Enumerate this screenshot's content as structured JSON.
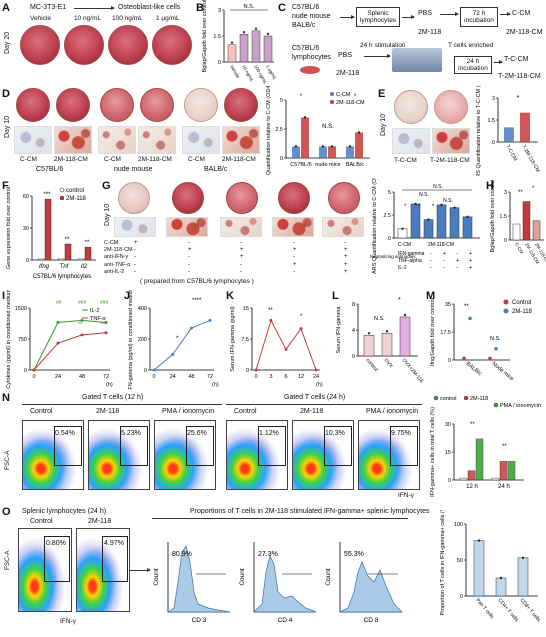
{
  "panel_labels": [
    "A",
    "B",
    "C",
    "D",
    "E",
    "F",
    "G",
    "H",
    "I",
    "J",
    "K",
    "L",
    "M",
    "N",
    "O"
  ],
  "A": {
    "title_left": "MC-3T3-E1",
    "title_right": "Osteoblast-like cells",
    "conditions": [
      "Vehicle",
      "10 ng/mL",
      "100 ng/mL",
      "1 μg/mL"
    ],
    "row_label": "Day 20"
  },
  "B": {
    "ylabel": "Bglap/Gapdh fold over control",
    "ns": "N.S.",
    "categories": [
      "Vehicle",
      "10 ng/mL",
      "100 ng/mL",
      "1 μg/mL"
    ]
  },
  "C": {
    "row1_sources": [
      "C57BL/6",
      "nude mouse",
      "BALB/c"
    ],
    "row1_box1": "Splenic lymphocytes",
    "row1_box2": "PBS",
    "row1_box2b": "2M-118",
    "row1_box3": "72 h incubation",
    "row1_out1": "C-CM",
    "row1_out2": "2M-118-CM",
    "row2_source1": "C57BL/6",
    "row2_source2": "lymphocytes",
    "row2_pbs": "PBS",
    "row2_2m": "2M-118",
    "row2_stim": "24 h stimulation",
    "row2_enriched": "T cells enriched",
    "row2_incub": "24 h incubation",
    "row2_out1": "T-C-CM",
    "row2_out2": "T-2M-118-CM"
  },
  "D": {
    "row_label": "Day 10",
    "col_labels": [
      "C-CM",
      "2M-118-CM",
      "C-CM",
      "2M-118-CM",
      "C-CM",
      "2M-118-CM"
    ],
    "group_labels": [
      "C57BL/6",
      "nude mouse",
      "BALB/c"
    ],
    "chart_ylabel": "ARS Quantification relative to C-CM (OD405nm)",
    "legend": [
      "C-CM",
      "2M-118-CM"
    ],
    "xcats": [
      "C57BL/6",
      "nude mice",
      "BALB/c"
    ],
    "sig": [
      "*",
      "N.S.",
      "*"
    ]
  },
  "E": {
    "row_label": "Day 10",
    "col_labels": [
      "T-C-CM",
      "T-2M-118-CM"
    ],
    "chart_ylabel": "ARS Quantification relative to T-C-CM (OD405nm)",
    "xcats": [
      "T-C-CM",
      "T-2M-118-CM"
    ],
    "sig": "*"
  },
  "F": {
    "ylabel": "Gene expression fold over control",
    "legend": [
      "control",
      "2M-118"
    ],
    "xcats": [
      "Ifng",
      "Tnf",
      "Il2"
    ],
    "xtitle": "C57BL/6 lymphocytes",
    "sig": [
      "***",
      "**",
      "**"
    ]
  },
  "G": {
    "row_label": "Day 10",
    "treat_rows": [
      "C-CM",
      "2M-118-CM",
      "anti-IFN-γ",
      "anti-TNF-α",
      "anti-IL-2"
    ],
    "signs": [
      [
        "+",
        "-",
        "-",
        "-",
        "-"
      ],
      [
        "-",
        "+",
        "+",
        "+",
        "+"
      ],
      [
        "-",
        "-",
        "+",
        "-",
        "+"
      ],
      [
        "-",
        "-",
        "-",
        "+",
        "+"
      ],
      [
        "-",
        "-",
        "-",
        "-",
        "+"
      ]
    ],
    "footer": "( prepared from C57BL/6 lymphocytes )",
    "chart_ylabel": "ARS Quantification relative to C-CM (OD405nm)",
    "chart_rows": [
      "C-CM",
      "2M-118-CM"
    ],
    "neutral_label": "Neutralizing antibodies",
    "neutral_rows": [
      "IFN-gamma",
      "TNF-alpha",
      "IL-2"
    ],
    "chart_signs": [
      [
        "-",
        "+",
        "-",
        "+"
      ],
      [
        "-",
        "-",
        "+",
        "+"
      ],
      [
        "-",
        "-",
        "-",
        "+"
      ]
    ],
    "ns": [
      "N.S.",
      "N.S.",
      "N.S."
    ],
    "stars": [
      "*",
      "*",
      "*"
    ]
  },
  "H": {
    "ylabel": "Bglap/Gapdh fold over control",
    "xcats": [
      "C-CM",
      "2M-118-CM",
      "2M-118-CM + anti-IFN-γ"
    ],
    "sig": [
      "**",
      "*"
    ]
  },
  "I": {
    "ylabel": "Cytokines (pg/ml) in conditioned medium",
    "legend": [
      "IL-2",
      "TNF-α"
    ],
    "xlabel": "(h)",
    "sig_il2": [
      "##",
      "###",
      "###"
    ],
    "sig_tnf": [
      "**",
      "***"
    ]
  },
  "J": {
    "ylabel": "IFN-gamma (pg/ml) in conditioned medium",
    "xlabel": "(h)",
    "sig": [
      "*",
      "****"
    ]
  },
  "K": {
    "ylabel": "Serum IFN-gamma (pg/ml)",
    "xlabel": "(h)",
    "sig": [
      "**",
      "*"
    ]
  },
  "L": {
    "ylabel": "Serum IFN-gamma",
    "xcats": [
      "control",
      "OVX",
      "OVX+2M-118"
    ],
    "sig": [
      "N.S.",
      "*"
    ]
  },
  "M": {
    "ylabel": "Ifng/Gapdh fold over control",
    "legend": [
      "Control",
      "2M-118"
    ],
    "xcats": [
      "BALB/c",
      "Nude mice"
    ],
    "sig": [
      "**",
      "N.S."
    ]
  },
  "N": {
    "title_12h": "Gated T cells (12 h)",
    "title_24h": "Gated T cells (24 h)",
    "cols_12h": [
      "Control",
      "2M-118",
      "PMA / ionomycin"
    ],
    "cols_24h": [
      "Control",
      "2M-118",
      "PMA / ionomycin"
    ],
    "pcts_12h": [
      "0.54%",
      "5.23%",
      "25.6%"
    ],
    "pcts_24h": [
      "1.12%",
      "10.3%",
      "9.75%"
    ],
    "yaxis": "FSC-A",
    "xaxis": "IFN-γ",
    "chart_legend": [
      "control",
      "2M-118",
      "PMA / ionomycin"
    ],
    "chart_ylabel": "IFN-gamma+ cells in total T cells (%)",
    "chart_xcats": [
      "12 h",
      "24 h"
    ],
    "chart_sig": [
      "**",
      "**"
    ]
  },
  "O": {
    "title_left": "Splenic lymphocytes (24 h)",
    "cols": [
      "Control",
      "2M-118"
    ],
    "pcts": [
      "0.80%",
      "4.97%"
    ],
    "yaxis": "FSC-A",
    "xaxis": "IFN-γ",
    "title_mid": "Proportions of T cells in 2M-118 stimulated IFN-gamma+ splenic lymphocytes",
    "hist_pcts": [
      "80.9%",
      "27.3%",
      "55.3%"
    ],
    "hist_x": [
      "CD 3",
      "CD 4",
      "CD 8"
    ],
    "hist_y": "Count",
    "chart_ylabel": "Proportion of T cells in IFN-gamma+ cells (%)",
    "chart_xcats": [
      "Pan T cells",
      "CD4+ T cells",
      "CD8+ T cells"
    ]
  },
  "colors": {
    "bar_blue": "#4a7cc0",
    "bar_red": "#c83a3a",
    "green": "#2ea02e",
    "hist_fill": "#a9cbe8"
  },
  "chart_data": [
    {
      "panel": "B",
      "type": "bar",
      "categories": [
        "Vehicle",
        "10 ng/mL",
        "100 ng/mL",
        "1 μg/mL"
      ],
      "values": [
        1.0,
        1.6,
        1.8,
        1.5
      ],
      "ylim": [
        0,
        3
      ]
    },
    {
      "panel": "D",
      "type": "bar",
      "categories": [
        "C57BL/6",
        "nude mice",
        "BALB/c"
      ],
      "series": [
        {
          "name": "C-CM",
          "values": [
            1.0,
            1.0,
            1.0
          ]
        },
        {
          "name": "2M-118-CM",
          "values": [
            3.5,
            1.0,
            2.2
          ]
        }
      ],
      "ylim": [
        0,
        5
      ]
    },
    {
      "panel": "E",
      "type": "bar",
      "categories": [
        "T-C-CM",
        "T-2M-118-CM"
      ],
      "values": [
        1.0,
        2.0
      ],
      "ylim": [
        0,
        3
      ]
    },
    {
      "panel": "F",
      "type": "bar",
      "categories": [
        "Ifng",
        "Tnf",
        "Il2"
      ],
      "series": [
        {
          "name": "control",
          "values": [
            1,
            1,
            1
          ]
        },
        {
          "name": "2M-118",
          "values": [
            57,
            15,
            12
          ]
        }
      ],
      "ylim": [
        0,
        60
      ]
    },
    {
      "panel": "G",
      "type": "bar",
      "categories": [
        "1",
        "2",
        "3",
        "4",
        "5",
        "6"
      ],
      "values": [
        1.0,
        3.7,
        2.0,
        3.6,
        3.3,
        2.3
      ],
      "ylim": [
        0,
        5
      ]
    },
    {
      "panel": "H",
      "type": "bar",
      "categories": [
        "C-CM",
        "2M-118-CM",
        "2M-118-CM + anti-IFN-γ"
      ],
      "values": [
        1.0,
        2.4,
        1.2
      ],
      "ylim": [
        0,
        3
      ]
    },
    {
      "panel": "I",
      "type": "line",
      "x": [
        0,
        24,
        48,
        72
      ],
      "series": [
        {
          "name": "IL-2",
          "values": [
            0,
            1150,
            1200,
            1150
          ]
        },
        {
          "name": "TNF-α",
          "values": [
            0,
            650,
            850,
            900
          ]
        }
      ],
      "xlim": [
        0,
        72
      ],
      "ylim": [
        0,
        1500
      ]
    },
    {
      "panel": "J",
      "type": "line",
      "x": [
        0,
        24,
        48,
        72
      ],
      "values": [
        0,
        100,
        270,
        320
      ],
      "ylim": [
        0,
        400
      ]
    },
    {
      "panel": "K",
      "type": "line",
      "x": [
        0,
        3,
        6,
        12,
        24
      ],
      "values": [
        0,
        12,
        5,
        10,
        0
      ],
      "ylim": [
        0,
        15
      ]
    },
    {
      "panel": "L",
      "type": "bar",
      "categories": [
        "control",
        "OVX",
        "OVX+2M-118"
      ],
      "values": [
        3.2,
        3.5,
        6.0
      ],
      "ylim": [
        0,
        8
      ]
    },
    {
      "panel": "M",
      "type": "scatter",
      "categories": [
        "BALB/c",
        "Nude mice"
      ],
      "series": [
        {
          "name": "Control",
          "values": [
            1,
            1
          ]
        },
        {
          "name": "2M-118",
          "values": [
            26,
            7
          ]
        }
      ],
      "ylim": [
        0,
        35
      ]
    },
    {
      "panel": "N",
      "type": "bar",
      "categories": [
        "12 h",
        "24 h"
      ],
      "series": [
        {
          "name": "control",
          "values": [
            1,
            1
          ]
        },
        {
          "name": "2M-118",
          "values": [
            5,
            10
          ]
        },
        {
          "name": "PMA / ionomycin",
          "values": [
            22,
            10
          ]
        }
      ],
      "ylim": [
        0,
        30
      ]
    },
    {
      "panel": "O",
      "type": "bar",
      "categories": [
        "Pan T cells",
        "CD4+ T cells",
        "CD8+ T cells"
      ],
      "values": [
        77,
        25,
        53
      ],
      "ylim": [
        0,
        100
      ]
    }
  ]
}
